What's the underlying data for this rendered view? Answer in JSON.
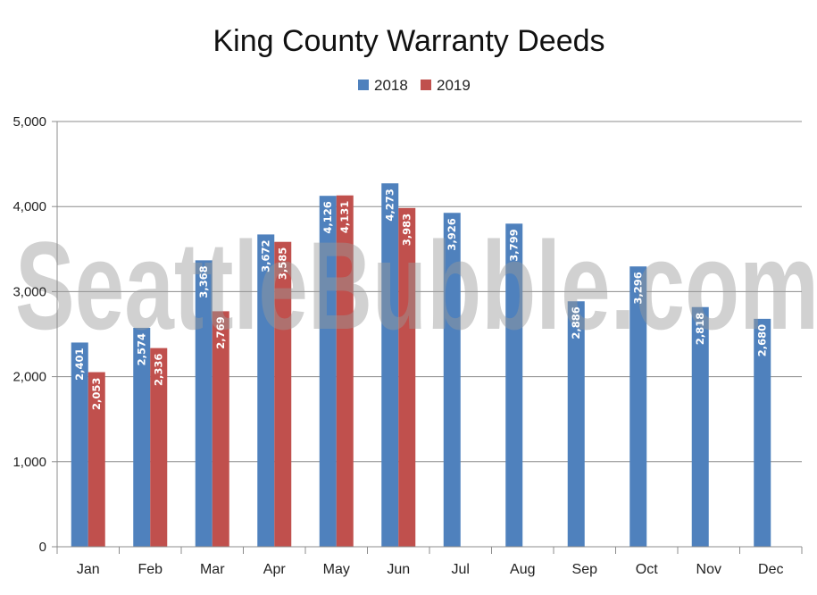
{
  "watermark": "SeattleBubble.com",
  "chart_data": {
    "type": "bar",
    "title": "King County Warranty Deeds",
    "categories": [
      "Jan",
      "Feb",
      "Mar",
      "Apr",
      "May",
      "Jun",
      "Jul",
      "Aug",
      "Sep",
      "Oct",
      "Nov",
      "Dec"
    ],
    "series": [
      {
        "name": "2018",
        "color": "#4f81bd",
        "values": [
          2401,
          2574,
          3368,
          3672,
          4126,
          4273,
          3926,
          3799,
          2886,
          3296,
          2818,
          2680
        ]
      },
      {
        "name": "2019",
        "color": "#c0504d",
        "values": [
          2053,
          2336,
          2769,
          3585,
          4131,
          3983,
          null,
          null,
          null,
          null,
          null,
          null
        ]
      }
    ],
    "data_labels": {
      "2018": [
        "2,401",
        "2,574",
        "3,368",
        "3,672",
        "4,126",
        "4,273",
        "3,926",
        "3,799",
        "2,886",
        "3,296",
        "2,818",
        "2,680"
      ],
      "2019": [
        "2,053",
        "2,336",
        "2,769",
        "3,585",
        "4,131",
        "3,983"
      ]
    },
    "yticks": [
      0,
      1000,
      2000,
      3000,
      4000,
      5000
    ],
    "ytick_labels": [
      "0",
      "1,000",
      "2,000",
      "3,000",
      "4,000",
      "5,000"
    ],
    "ylim": [
      0,
      5000
    ],
    "grid": true,
    "legend_position": "top-center"
  }
}
